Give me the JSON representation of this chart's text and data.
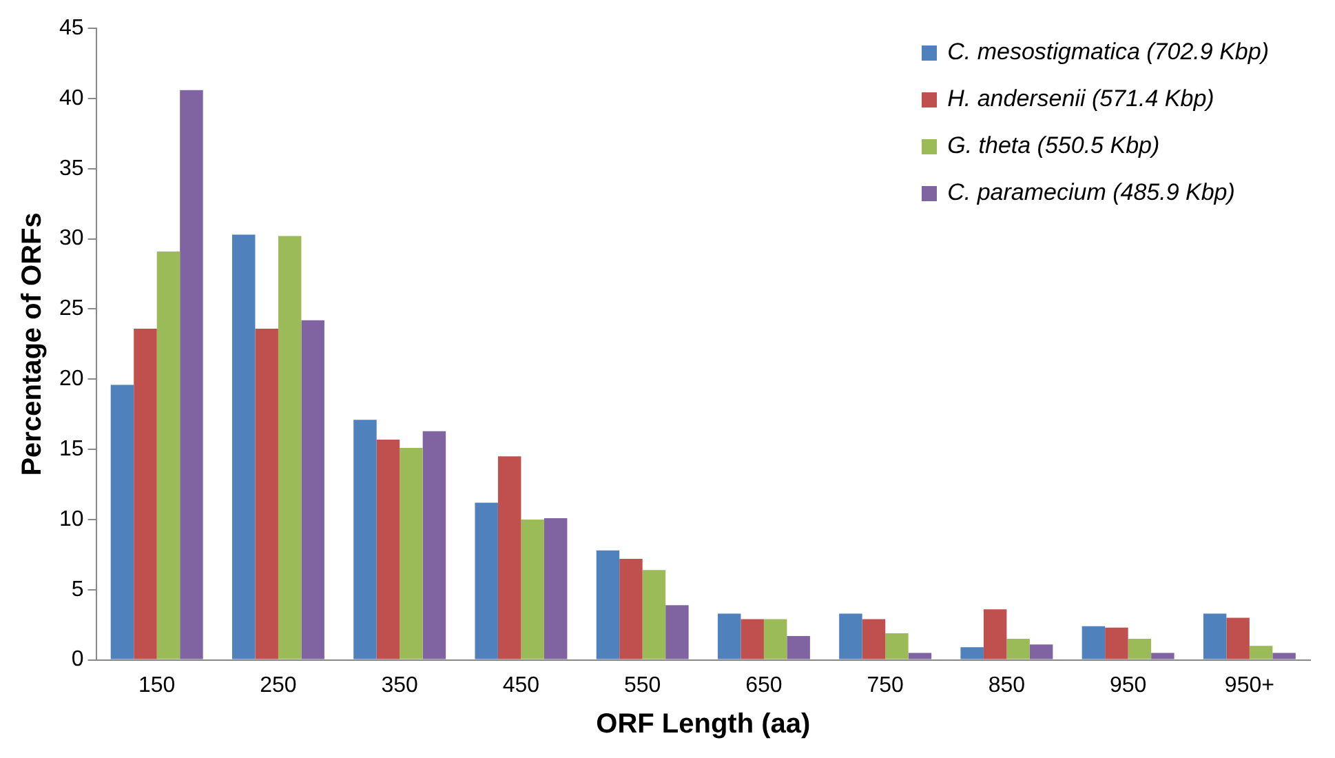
{
  "chart_data": {
    "type": "bar",
    "xlabel": "ORF Length (aa)",
    "ylabel": "Percentage of ORFs",
    "categories": [
      "150",
      "250",
      "350",
      "450",
      "550",
      "650",
      "750",
      "850",
      "950",
      "950+"
    ],
    "series": [
      {
        "name": "C. mesostigmatica (702.9 Kbp)",
        "color": "#4f81bd",
        "values": [
          19.6,
          30.3,
          17.1,
          11.2,
          7.8,
          3.3,
          3.3,
          0.9,
          2.4,
          3.3
        ]
      },
      {
        "name": "H. andersenii (571.4 Kbp)",
        "color": "#c0504d",
        "values": [
          23.6,
          23.6,
          15.7,
          14.5,
          7.2,
          2.9,
          2.9,
          3.6,
          2.3,
          3.0
        ]
      },
      {
        "name": "G. theta (550.5 Kbp)",
        "color": "#9bbb59",
        "values": [
          29.1,
          30.2,
          15.1,
          10.0,
          6.4,
          2.9,
          1.9,
          1.5,
          1.5,
          1.0
        ]
      },
      {
        "name": "C. paramecium (485.9 Kbp)",
        "color": "#8064a2",
        "values": [
          40.6,
          24.2,
          16.3,
          10.1,
          3.9,
          1.7,
          0.5,
          1.1,
          0.5,
          0.5
        ]
      }
    ],
    "ylim": [
      0,
      45
    ],
    "yticks": [
      0,
      5,
      10,
      15,
      20,
      25,
      30,
      35,
      40,
      45
    ],
    "grid": false,
    "legend": "top right"
  }
}
